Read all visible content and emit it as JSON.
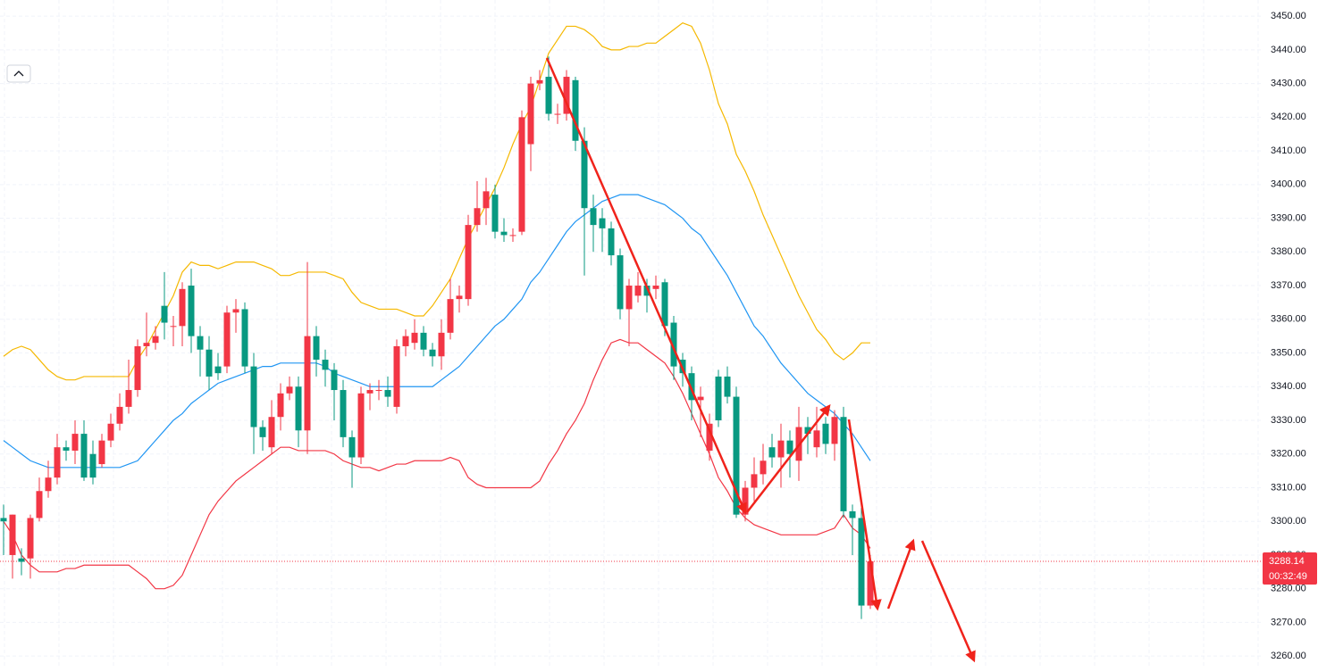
{
  "chart_data": {
    "type": "candlestick",
    "open": [
      3301,
      3290,
      3289,
      3289,
      3301,
      3309,
      3313,
      3322,
      3321,
      3326,
      3320,
      3317,
      3324,
      3329,
      3334,
      3339,
      3352,
      3353,
      3364,
      3358,
      3358,
      3370,
      3355,
      3351,
      3346,
      3346,
      3362,
      3363,
      3346,
      3328,
      3322,
      3331,
      3338,
      3340,
      3327,
      3355,
      3348,
      3345,
      3339,
      3325,
      3319,
      3338,
      3339,
      3339,
      3334,
      3352,
      3353,
      3356,
      3351,
      3349,
      3356,
      3366,
      3366,
      3388,
      3393,
      3397,
      3386,
      3385,
      3386,
      3412,
      3430,
      3432,
      3421,
      3421,
      3431,
      3413,
      3393,
      3390,
      3387,
      3379,
      3363,
      3367,
      3370,
      3369,
      3371,
      3359,
      3348,
      3344,
      3336,
      3321,
      3343,
      3343,
      3337,
      3302,
      3310,
      3314,
      3322,
      3319,
      3324,
      3318,
      3328,
      3322,
      3329,
      3323,
      3331,
      3303,
      3301,
      3275
    ],
    "high": [
      3305,
      3302,
      3292,
      3302,
      3313,
      3318,
      3326,
      3324,
      3330,
      3330,
      3324,
      3326,
      3332,
      3338,
      3348,
      3354,
      3362,
      3358,
      3374,
      3361,
      3371,
      3375,
      3358,
      3355,
      3350,
      3364,
      3366,
      3365,
      3350,
      3330,
      3336,
      3341,
      3343,
      3343,
      3377,
      3358,
      3351,
      3347,
      3342,
      3327,
      3340,
      3341,
      3342,
      3343,
      3354,
      3357,
      3360,
      3358,
      3353,
      3360,
      3372,
      3370,
      3391,
      3401,
      3402,
      3400,
      3390,
      3387,
      3422,
      3432,
      3434,
      3438,
      3424,
      3434,
      3432,
      3417,
      3397,
      3393,
      3389,
      3381,
      3372,
      3374,
      3372,
      3373,
      3372,
      3361,
      3350,
      3346,
      3340,
      3332,
      3345,
      3346,
      3340,
      3312,
      3319,
      3323,
      3326,
      3329,
      3327,
      3334,
      3331,
      3334,
      3331,
      3333,
      3334,
      3305,
      3304,
      3290
    ],
    "low": [
      3290,
      3283,
      3284,
      3283,
      3300,
      3307,
      3311,
      3318,
      3317,
      3312,
      3311,
      3316,
      3322,
      3327,
      3332,
      3337,
      3349,
      3351,
      3354,
      3352,
      3352,
      3350,
      3343,
      3339,
      3342,
      3344,
      3356,
      3344,
      3320,
      3321,
      3320,
      3327,
      3336,
      3322,
      3320,
      3343,
      3340,
      3330,
      3322,
      3310,
      3317,
      3333,
      3336,
      3334,
      3332,
      3349,
      3351,
      3349,
      3346,
      3345,
      3354,
      3362,
      3364,
      3386,
      3388,
      3384,
      3383,
      3383,
      3385,
      3404,
      3428,
      3419,
      3418,
      3419,
      3410,
      3373,
      3380,
      3380,
      3376,
      3360,
      3352,
      3365,
      3362,
      3366,
      3355,
      3342,
      3340,
      3330,
      3325,
      3318,
      3328,
      3335,
      3301,
      3300,
      3306,
      3311,
      3316,
      3310,
      3313,
      3312,
      3320,
      3319,
      3320,
      3318,
      3301,
      3290,
      3271,
      3274
    ],
    "close": [
      3300,
      3302,
      3288,
      3301,
      3309,
      3313,
      3322,
      3321,
      3326,
      3313,
      3313,
      3324,
      3329,
      3334,
      3339,
      3352,
      3353,
      3355,
      3359,
      3358,
      3369,
      3355,
      3351,
      3343,
      3344,
      3362,
      3363,
      3346,
      3328,
      3325,
      3331,
      3338,
      3340,
      3327,
      3355,
      3348,
      3345,
      3339,
      3325,
      3319,
      3338,
      3339,
      3339,
      3337,
      3352,
      3355,
      3356,
      3351,
      3349,
      3356,
      3366,
      3367,
      3388,
      3393,
      3398,
      3386,
      3385,
      3385,
      3420,
      3430,
      3431,
      3421,
      3421,
      3432,
      3413,
      3393,
      3388,
      3387,
      3379,
      3363,
      3370,
      3370,
      3367,
      3370,
      3358,
      3346,
      3344,
      3336,
      3337,
      3329,
      3330,
      3337,
      3302,
      3310,
      3314,
      3318,
      3319,
      3324,
      3320,
      3328,
      3326,
      3327,
      3323,
      3331,
      3303,
      3301,
      3275,
      3288.14
    ],
    "up_color": "#f23645",
    "down_color": "#089981",
    "bands": [
      {
        "color": "#f5b800",
        "values": [
          3349,
          3351,
          3352,
          3351,
          3348,
          3345,
          3343,
          3342,
          3342,
          3343,
          3343,
          3343,
          3343,
          3343,
          3343,
          3348,
          3352,
          3357,
          3362,
          3367,
          3374,
          3377,
          3376,
          3376,
          3375,
          3376,
          3377,
          3377,
          3377,
          3376,
          3375,
          3373,
          3373,
          3374,
          3374,
          3374,
          3374,
          3373,
          3372,
          3368,
          3365,
          3364,
          3363,
          3363,
          3363,
          3362,
          3361,
          3361,
          3364,
          3368,
          3372,
          3378,
          3384,
          3389,
          3394,
          3399,
          3405,
          3412,
          3418,
          3423,
          3431,
          3439,
          3443,
          3447,
          3447,
          3446,
          3444,
          3441,
          3440,
          3440,
          3441,
          3441,
          3442,
          3442,
          3444,
          3446,
          3448,
          3447,
          3442,
          3434,
          3424,
          3418,
          3409,
          3404,
          3398,
          3391,
          3385,
          3379,
          3373,
          3367,
          3362,
          3357,
          3354,
          3350,
          3348,
          3350,
          3353,
          3353
        ]
      },
      {
        "color": "#2196f3",
        "values": [
          3324,
          3322,
          3320,
          3318,
          3317,
          3316,
          3316,
          3316,
          3316,
          3316,
          3316,
          3316,
          3316,
          3316,
          3317,
          3318,
          3321,
          3324,
          3327,
          3330,
          3332,
          3335,
          3337,
          3339,
          3341,
          3342,
          3343,
          3344,
          3345,
          3346,
          3346,
          3347,
          3347,
          3347,
          3347,
          3347,
          3346,
          3344,
          3343,
          3342,
          3341,
          3340,
          3340,
          3340,
          3340,
          3340,
          3340,
          3340,
          3340,
          3342,
          3344,
          3346,
          3349,
          3352,
          3355,
          3358,
          3360,
          3363,
          3366,
          3371,
          3374,
          3378,
          3382,
          3386,
          3389,
          3391,
          3393,
          3395,
          3396,
          3397,
          3397,
          3397,
          3396,
          3395,
          3394,
          3392,
          3390,
          3387,
          3385,
          3381,
          3377,
          3373,
          3368,
          3363,
          3358,
          3355,
          3351,
          3347,
          3344,
          3341,
          3338,
          3336,
          3334,
          3332,
          3329,
          3326,
          3322,
          3318
        ]
      },
      {
        "color": "#f23645",
        "values": [
          3300,
          3296,
          3290,
          3287,
          3285,
          3285,
          3285,
          3286,
          3286,
          3287,
          3287,
          3287,
          3287,
          3287,
          3287,
          3285,
          3283,
          3280,
          3280,
          3281,
          3284,
          3290,
          3296,
          3302,
          3306,
          3309,
          3312,
          3314,
          3316,
          3318,
          3320,
          3322,
          3322,
          3321,
          3321,
          3321,
          3321,
          3320,
          3318,
          3317,
          3316,
          3316,
          3315,
          3316,
          3317,
          3317,
          3318,
          3318,
          3318,
          3318,
          3319,
          3318,
          3313,
          3311,
          3310,
          3310,
          3310,
          3310,
          3310,
          3310,
          3312,
          3317,
          3321,
          3326,
          3330,
          3335,
          3342,
          3348,
          3353,
          3354,
          3353,
          3353,
          3351,
          3349,
          3347,
          3343,
          3338,
          3332,
          3326,
          3320,
          3313,
          3309,
          3304,
          3301,
          3299,
          3298,
          3297,
          3296,
          3296,
          3296,
          3296,
          3296,
          3297,
          3298,
          3302,
          3298,
          3296,
          3292
        ]
      }
    ],
    "ylim": [
      3256.6,
      3454.8
    ],
    "yticks": [
      {
        "value": 3260,
        "label": "3260.00"
      },
      {
        "value": 3270,
        "label": "3270.00"
      },
      {
        "value": 3280,
        "label": "3280.00"
      },
      {
        "value": 3290,
        "label": "3290.00"
      },
      {
        "value": 3300,
        "label": "3300.00"
      },
      {
        "value": 3310,
        "label": "3310.00"
      },
      {
        "value": 3320,
        "label": "3320.00"
      },
      {
        "value": 3330,
        "label": "3330.00"
      },
      {
        "value": 3340,
        "label": "3340.00"
      },
      {
        "value": 3350,
        "label": "3350.00"
      },
      {
        "value": 3360,
        "label": "3360.00"
      },
      {
        "value": 3370,
        "label": "3370.00"
      },
      {
        "value": 3380,
        "label": "3380.00"
      },
      {
        "value": 3390,
        "label": "3390.00"
      },
      {
        "value": 3400,
        "label": "3400.00"
      },
      {
        "value": 3410,
        "label": "3410.00"
      },
      {
        "value": 3420,
        "label": "3420.00"
      },
      {
        "value": 3430,
        "label": "3430.00"
      },
      {
        "value": 3440,
        "label": "3440.00"
      },
      {
        "value": 3450,
        "label": "3450.00"
      }
    ],
    "grid": true,
    "last_price": 3288.14,
    "countdown": "00:32:49"
  }
}
